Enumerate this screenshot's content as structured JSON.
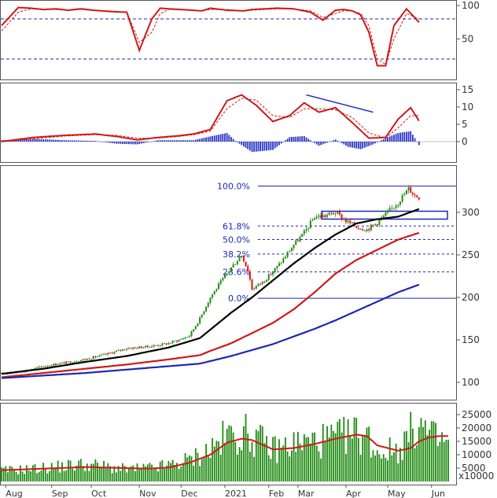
{
  "colors": {
    "candle_up": "#1f8a12",
    "candle_down": "#e01010",
    "ma_fast": "#000000",
    "ma_mid": "#d01818",
    "ma_slow": "#1c28b4",
    "oscillator": "#d01818",
    "histogram": "#2a34c8",
    "volume": "#1f8a12",
    "volume_ma": "#d01818",
    "fib": "#1c28b4",
    "divergence": "#2a34c8"
  },
  "chart_data": [
    {
      "type": "line",
      "panel": "stochastic",
      "y_ticks": [
        "100",
        "50"
      ],
      "ylim": [
        0,
        100
      ],
      "levels": [
        80,
        20
      ],
      "series": [
        {
          "style": "solid",
          "x": [
            0,
            8,
            14,
            20,
            26,
            32,
            38,
            44,
            52,
            60,
            66,
            72,
            76,
            80,
            86,
            96,
            100,
            108,
            116,
            120,
            126,
            132,
            140,
            148,
            154,
            160,
            164,
            168,
            172,
            176,
            180,
            184,
            188,
            194,
            200
          ],
          "values": [
            70,
            97,
            96,
            94,
            95,
            93,
            95,
            93,
            91,
            90,
            33,
            80,
            96,
            95,
            94,
            92,
            96,
            93,
            92,
            94,
            95,
            96,
            95,
            90,
            78,
            93,
            94,
            92,
            86,
            60,
            10,
            10,
            70,
            95,
            75
          ]
        },
        {
          "style": "dashed",
          "x": [
            0,
            8,
            14,
            20,
            26,
            32,
            38,
            44,
            52,
            60,
            66,
            72,
            76,
            80,
            86,
            96,
            100,
            108,
            116,
            120,
            126,
            132,
            140,
            148,
            154,
            160,
            164,
            168,
            172,
            176,
            180,
            184,
            188,
            194,
            200
          ],
          "values": [
            62,
            90,
            95,
            94,
            94,
            93,
            94,
            93,
            92,
            90,
            45,
            60,
            88,
            94,
            94,
            92,
            94,
            94,
            92,
            93,
            94,
            95,
            95,
            92,
            82,
            88,
            92,
            92,
            88,
            70,
            20,
            12,
            50,
            88,
            80
          ]
        }
      ]
    },
    {
      "type": "line",
      "panel": "macd",
      "y_ticks": [
        "15",
        "10",
        "5",
        "0"
      ],
      "ylim": [
        -3,
        17
      ],
      "series": [
        {
          "style": "solid",
          "x": [
            0,
            15,
            30,
            45,
            55,
            65,
            75,
            85,
            92,
            100,
            108,
            115,
            122,
            130,
            138,
            145,
            152,
            160,
            168,
            176,
            184,
            190,
            196,
            200
          ],
          "values": [
            0,
            1.2,
            1.8,
            2.2,
            1.5,
            0.5,
            1.2,
            1.7,
            2.2,
            3.5,
            11.8,
            13.5,
            10.5,
            5.8,
            7.5,
            11.2,
            8.5,
            9.8,
            5.5,
            1,
            1.2,
            6.5,
            9.8,
            6
          ]
        },
        {
          "style": "dashed",
          "x": [
            0,
            15,
            30,
            45,
            55,
            65,
            75,
            85,
            92,
            100,
            108,
            115,
            122,
            130,
            138,
            145,
            152,
            160,
            168,
            176,
            184,
            190,
            196,
            200
          ],
          "values": [
            0,
            0.8,
            1.6,
            2,
            1.8,
            1,
            1,
            1.5,
            2,
            3,
            9.5,
            12.5,
            12,
            7.5,
            7,
            9.5,
            9.5,
            9.2,
            7,
            2.5,
            1,
            4,
            7.5,
            7.5
          ]
        },
        {
          "style": "histogram",
          "x": [
            0,
            15,
            30,
            45,
            55,
            65,
            75,
            85,
            92,
            100,
            108,
            112,
            120,
            130,
            138,
            145,
            152,
            160,
            166,
            172,
            178,
            184,
            190,
            196,
            200
          ],
          "values": [
            0.4,
            0.8,
            0.4,
            0.2,
            -0.6,
            -0.8,
            0.4,
            0.4,
            0.4,
            1.5,
            2.5,
            0.2,
            -3,
            -2.4,
            1.3,
            1.6,
            -1.2,
            0.6,
            -1.5,
            -2.2,
            -0.8,
            1,
            2.5,
            3,
            -1
          ]
        }
      ]
    },
    {
      "type": "line",
      "panel": "price",
      "y_ticks": [
        "300",
        "250",
        "200",
        "150",
        "100"
      ],
      "ylim": [
        73,
        337
      ],
      "fib_levels": [
        {
          "label": "100.0%",
          "value": 331
        },
        {
          "label": "61.8%",
          "value": 284
        },
        {
          "label": "50.0%",
          "value": 268
        },
        {
          "label": "38.2%",
          "value": 251
        },
        {
          "label": "23.6%",
          "value": 230
        },
        {
          "label": "0.0%",
          "value": 199
        }
      ],
      "trendlines": [
        {
          "panel": "macd",
          "from": [
            146,
            13.5
          ],
          "to": [
            178,
            8.5
          ]
        }
      ],
      "price_anchors": {
        "x": [
          0,
          10,
          20,
          30,
          40,
          50,
          60,
          70,
          80,
          85,
          90,
          95,
          100,
          105,
          110,
          115,
          118,
          120,
          125,
          130,
          135,
          140,
          145,
          150,
          155,
          160,
          165,
          170,
          175,
          180,
          185,
          190,
          195,
          198,
          200
        ],
        "values": [
          110,
          113,
          119,
          123,
          127,
          133,
          140,
          142,
          146,
          150,
          155,
          175,
          200,
          218,
          235,
          250,
          232,
          210,
          218,
          230,
          245,
          262,
          276,
          295,
          296,
          300,
          290,
          283,
          280,
          288,
          300,
          312,
          328,
          320,
          318
        ]
      },
      "series": [
        {
          "name": "",
          "color": "ma_fast",
          "x": [
            0,
            20,
            40,
            60,
            80,
            95,
            100,
            110,
            120,
            130,
            140,
            150,
            160,
            170,
            180,
            190,
            200
          ],
          "values": [
            110,
            116,
            124,
            131,
            141,
            152,
            162,
            182,
            200,
            220,
            240,
            258,
            274,
            287,
            292,
            295,
            304
          ]
        },
        {
          "name": "",
          "color": "ma_mid",
          "x": [
            0,
            20,
            40,
            60,
            80,
            95,
            100,
            110,
            120,
            130,
            140,
            150,
            160,
            170,
            180,
            190,
            200
          ],
          "values": [
            106,
            111,
            116,
            121,
            127,
            132,
            137,
            146,
            158,
            170,
            186,
            206,
            228,
            244,
            256,
            268,
            276
          ]
        },
        {
          "name": "",
          "color": "ma_slow",
          "x": [
            0,
            20,
            40,
            60,
            80,
            95,
            100,
            110,
            120,
            130,
            140,
            150,
            160,
            170,
            180,
            190,
            200
          ],
          "values": [
            105,
            108,
            111,
            115,
            119,
            122,
            125,
            131,
            138,
            145,
            154,
            163,
            173,
            184,
            195,
            206,
            215
          ]
        }
      ]
    },
    {
      "type": "bar",
      "panel": "volume",
      "y_ticks": [
        "25000",
        "20000",
        "15000",
        "10000",
        "5000"
      ],
      "unit_label": "x10000",
      "ylim": [
        0,
        28000
      ],
      "x_ticks": [
        {
          "label": "Aug",
          "x": 2
        },
        {
          "label": "Sep",
          "x": 24
        },
        {
          "label": "Oct",
          "x": 43
        },
        {
          "label": "Nov",
          "x": 66
        },
        {
          "label": "Dec",
          "x": 86
        },
        {
          "label": "2021",
          "x": 107
        },
        {
          "label": "Feb",
          "x": 128
        },
        {
          "label": "Mar",
          "x": 142
        },
        {
          "label": "Apr",
          "x": 165
        },
        {
          "label": "May",
          "x": 185
        },
        {
          "label": "Jun",
          "x": 206
        }
      ],
      "volume_anchors": {
        "x": [
          0,
          20,
          40,
          60,
          70,
          80,
          90,
          100,
          108,
          115,
          120,
          130,
          140,
          150,
          160,
          170,
          175,
          180,
          190,
          196,
          200,
          205,
          210,
          214
        ],
        "values": [
          4000,
          5000,
          6500,
          4500,
          5000,
          6000,
          8000,
          12000,
          17000,
          18000,
          17000,
          12000,
          14000,
          15000,
          16000,
          18000,
          17000,
          11000,
          12000,
          18000,
          22000,
          17000,
          15000,
          15000
        ]
      },
      "series": [
        {
          "name": "",
          "style": "ma",
          "x": [
            0,
            20,
            40,
            60,
            70,
            80,
            90,
            100,
            108,
            115,
            120,
            130,
            140,
            150,
            160,
            170,
            175,
            180,
            190,
            196,
            200,
            205,
            210,
            214
          ],
          "values": [
            4200,
            4800,
            5400,
            5000,
            4800,
            5200,
            7000,
            10000,
            14500,
            16000,
            15500,
            12000,
            12500,
            14000,
            16000,
            17500,
            17000,
            13500,
            11500,
            12500,
            15000,
            16500,
            17000,
            17000
          ]
        }
      ]
    }
  ]
}
